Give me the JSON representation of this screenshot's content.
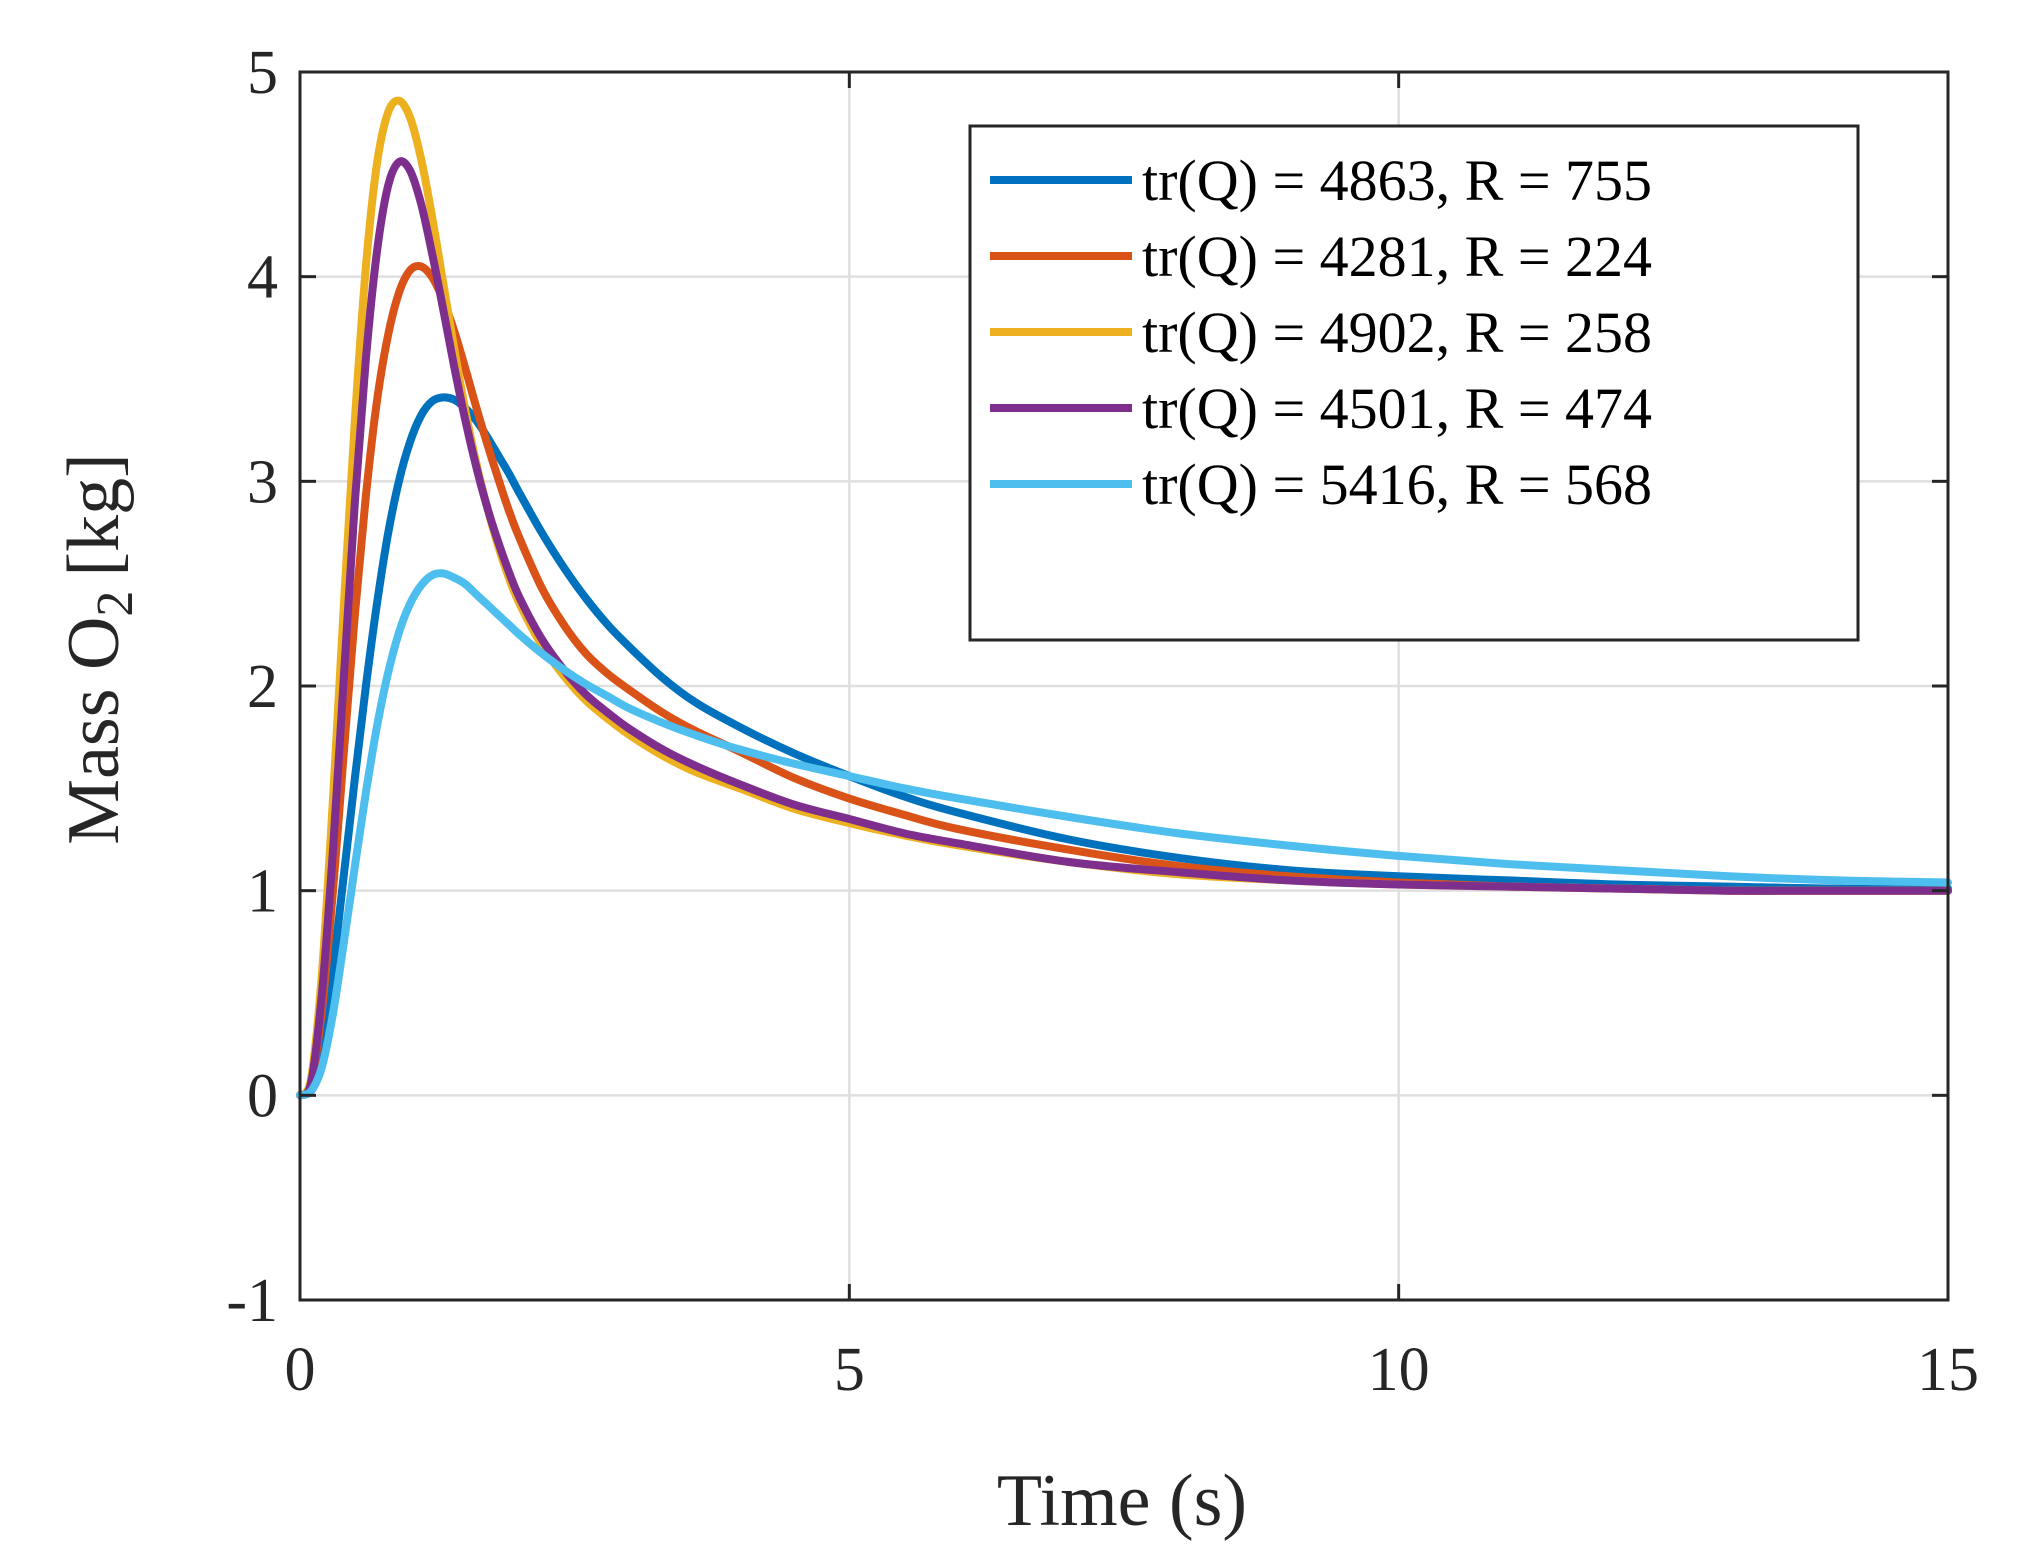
{
  "chart_data": {
    "type": "line",
    "title": "",
    "xlabel": "Time (s)",
    "ylabel_main": "Mass O",
    "ylabel_subscript": "2",
    "ylabel_unit": "[kg]",
    "xlim": [
      0,
      15
    ],
    "ylim": [
      -1,
      5
    ],
    "xticks": [
      0,
      5,
      10,
      15
    ],
    "xtick_labels": [
      "0",
      "5",
      "10",
      "15"
    ],
    "yticks": [
      -1,
      0,
      1,
      2,
      3,
      4,
      5
    ],
    "ytick_labels": [
      "-1",
      "0",
      "1",
      "2",
      "3",
      "4",
      "5"
    ],
    "grid": true,
    "legend_position": "top-right",
    "x": [
      0,
      0.1,
      0.2,
      0.3,
      0.4,
      0.5,
      0.6,
      0.7,
      0.8,
      0.9,
      1.0,
      1.1,
      1.2,
      1.3,
      1.4,
      1.5,
      1.6,
      1.7,
      1.8,
      1.9,
      2.0,
      2.2,
      2.4,
      2.6,
      2.8,
      3.0,
      3.3,
      3.6,
      4.0,
      4.5,
      5.0,
      5.5,
      6.0,
      7.0,
      8.0,
      9.0,
      10.0,
      11.0,
      12.0,
      13.0,
      14.0,
      15.0
    ],
    "series": [
      {
        "name": "tr(Q) = 4863, R = 755",
        "color": "#0072BD",
        "values": [
          0,
          0.04,
          0.25,
          0.62,
          1.08,
          1.55,
          2.0,
          2.4,
          2.74,
          3.0,
          3.19,
          3.32,
          3.39,
          3.41,
          3.4,
          3.36,
          3.3,
          3.22,
          3.13,
          3.04,
          2.94,
          2.75,
          2.58,
          2.43,
          2.3,
          2.19,
          2.04,
          1.92,
          1.8,
          1.67,
          1.56,
          1.46,
          1.38,
          1.25,
          1.16,
          1.1,
          1.07,
          1.05,
          1.03,
          1.02,
          1.01,
          1.01
        ]
      },
      {
        "name": "tr(Q) = 4281, R = 224",
        "color": "#D95319",
        "values": [
          0,
          0.06,
          0.42,
          1.0,
          1.68,
          2.35,
          2.93,
          3.39,
          3.71,
          3.92,
          4.03,
          4.05,
          4.0,
          3.89,
          3.74,
          3.56,
          3.37,
          3.19,
          3.02,
          2.86,
          2.72,
          2.48,
          2.3,
          2.16,
          2.06,
          1.98,
          1.87,
          1.78,
          1.68,
          1.55,
          1.45,
          1.37,
          1.3,
          1.2,
          1.12,
          1.07,
          1.04,
          1.02,
          1.01,
          1.0,
          1.0,
          1.0
        ]
      },
      {
        "name": "tr(Q) = 4902, R = 258",
        "color": "#EDB120",
        "values": [
          0,
          0.08,
          0.6,
          1.45,
          2.4,
          3.3,
          4.05,
          4.55,
          4.8,
          4.86,
          4.78,
          4.58,
          4.3,
          3.98,
          3.66,
          3.36,
          3.1,
          2.88,
          2.69,
          2.53,
          2.4,
          2.2,
          2.05,
          1.93,
          1.84,
          1.76,
          1.66,
          1.58,
          1.5,
          1.4,
          1.33,
          1.27,
          1.22,
          1.14,
          1.08,
          1.05,
          1.03,
          1.02,
          1.01,
          1.0,
          1.0,
          1.0
        ]
      },
      {
        "name": "tr(Q) = 4501, R = 474",
        "color": "#7E2F8E",
        "values": [
          0,
          0.06,
          0.5,
          1.2,
          2.05,
          2.9,
          3.6,
          4.12,
          4.44,
          4.56,
          4.52,
          4.36,
          4.12,
          3.85,
          3.57,
          3.31,
          3.08,
          2.88,
          2.71,
          2.56,
          2.43,
          2.23,
          2.08,
          1.96,
          1.87,
          1.79,
          1.69,
          1.61,
          1.52,
          1.42,
          1.35,
          1.28,
          1.23,
          1.14,
          1.09,
          1.05,
          1.03,
          1.02,
          1.01,
          1.0,
          1.0,
          1.0
        ]
      },
      {
        "name": "tr(Q) = 5416, R = 568",
        "color": "#4DBEEE",
        "values": [
          0,
          0.02,
          0.14,
          0.4,
          0.75,
          1.12,
          1.48,
          1.8,
          2.06,
          2.26,
          2.4,
          2.49,
          2.54,
          2.55,
          2.53,
          2.5,
          2.45,
          2.4,
          2.35,
          2.3,
          2.25,
          2.16,
          2.08,
          2.01,
          1.95,
          1.89,
          1.82,
          1.76,
          1.69,
          1.62,
          1.56,
          1.5,
          1.45,
          1.36,
          1.28,
          1.22,
          1.17,
          1.13,
          1.1,
          1.07,
          1.05,
          1.04
        ]
      }
    ]
  }
}
